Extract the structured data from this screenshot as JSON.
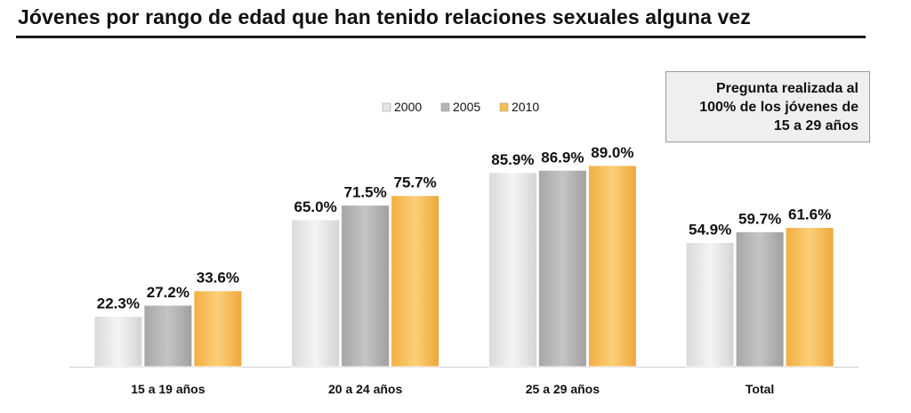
{
  "title": "Jóvenes por rango de edad que han tenido relaciones sexuales alguna vez",
  "note": "Pregunta realizada al\n100% de los jóvenes de\n15 a 29 años",
  "colors": {
    "2000": "#e6e6e6",
    "2005": "#b5b5b5",
    "2010": "#f8bd5a"
  },
  "chart_data": {
    "type": "bar",
    "categories": [
      "15 a 19 años",
      "20 a 24 años",
      "25 a 29 años",
      "Total"
    ],
    "series": [
      {
        "name": "2000",
        "values": [
          22.3,
          65.0,
          85.9,
          54.9
        ],
        "labels": [
          "22.3%",
          "65.0%",
          "85.9%",
          "54.9%"
        ]
      },
      {
        "name": "2005",
        "values": [
          27.2,
          71.5,
          86.9,
          59.7
        ],
        "labels": [
          "27.2%",
          "71.5%",
          "86.9%",
          "59.7%"
        ]
      },
      {
        "name": "2010",
        "values": [
          33.6,
          75.7,
          89.0,
          61.6
        ],
        "labels": [
          "33.6%",
          "75.7%",
          "89.0%",
          "61.6%"
        ]
      }
    ],
    "ylim": [
      0,
      100
    ],
    "legend": "top-center",
    "grid": false
  }
}
